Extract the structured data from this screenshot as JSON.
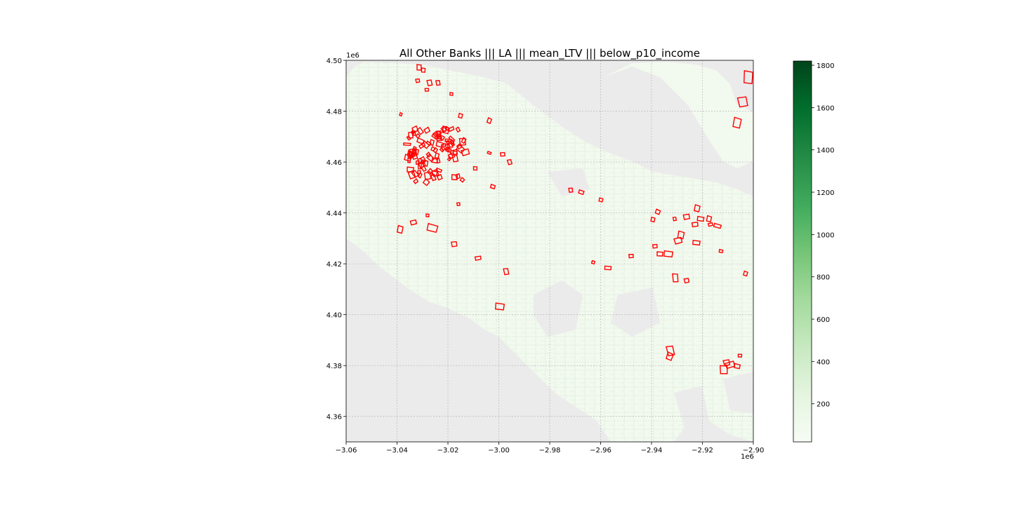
{
  "title": "All Other Banks ||| LA ||| mean_LTV ||| below_p10_income",
  "chart_data": {
    "type": "map",
    "title": "All Other Banks ||| LA ||| mean_LTV ||| below_p10_income",
    "x_ticks": [
      "−3.06",
      "−3.04",
      "−3.02",
      "−3.00",
      "−2.98",
      "−2.96",
      "−2.94",
      "−2.92",
      "−2.90"
    ],
    "x_values": [
      -3.06,
      -3.04,
      -3.02,
      -3.0,
      -2.98,
      -2.96,
      -2.94,
      -2.92,
      -2.9
    ],
    "x_offset": "1e6",
    "y_ticks": [
      "4.50",
      "4.48",
      "4.46",
      "4.44",
      "4.42",
      "4.40",
      "4.38",
      "4.36"
    ],
    "y_values": [
      4.5,
      4.48,
      4.46,
      4.44,
      4.42,
      4.4,
      4.38,
      4.36
    ],
    "y_offset": "1e6",
    "xlim": [
      -3.06,
      -2.9
    ],
    "ylim": [
      4.35,
      4.5
    ],
    "grid": true,
    "colorbar": {
      "colormap": "Greens",
      "range": [
        20,
        1820
      ],
      "ticks": [
        "200",
        "400",
        "600",
        "800",
        "1000",
        "1200",
        "1400",
        "1600",
        "1800"
      ],
      "tick_values": [
        200,
        400,
        600,
        800,
        1000,
        1200,
        1400,
        1600,
        1800
      ]
    },
    "colors": {
      "background_area": "#ebebeb",
      "fill": "#f2f9ef",
      "tract_lines": "#d8e8d0",
      "highlight_outline": "#ff0000",
      "grid": "#b0b0b0"
    }
  }
}
